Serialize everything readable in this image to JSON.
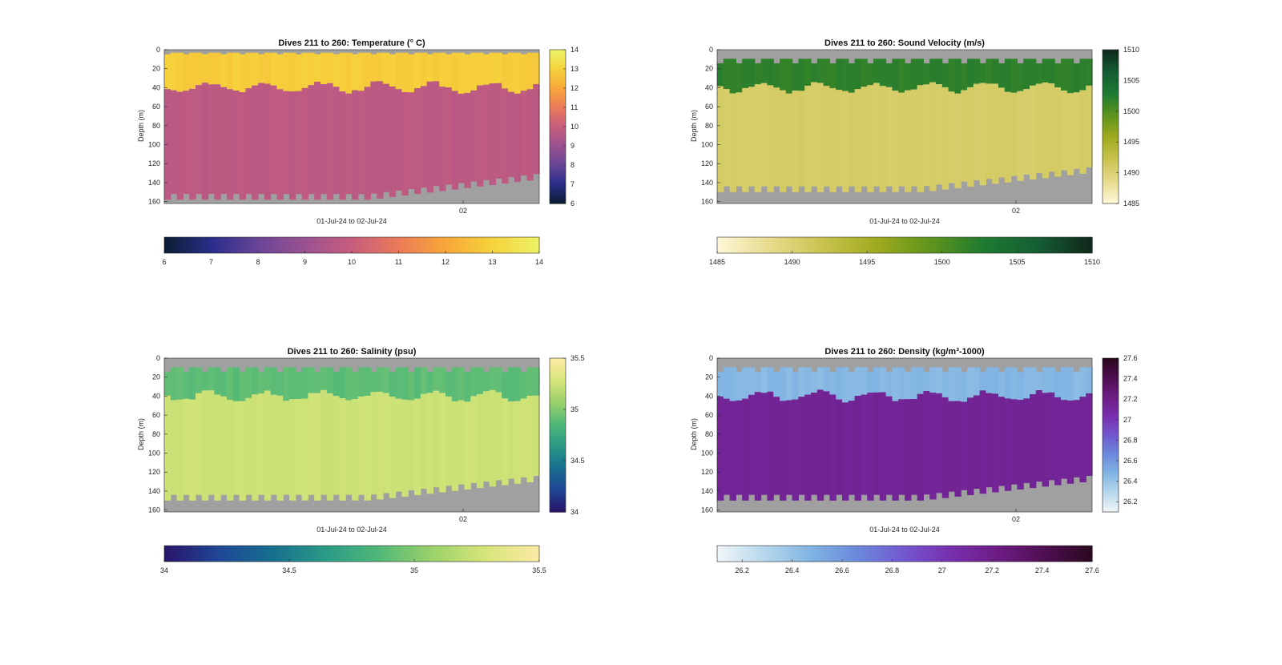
{
  "chart_data": [
    {
      "type": "heatmap",
      "title": "Dives 211 to 260: Temperature (° C)",
      "ylabel": "Depth (m)",
      "xlabel": "01-Jul-24 to 02-Jul-24",
      "ylim": [
        0,
        162
      ],
      "y_ticks": [
        0,
        20,
        40,
        60,
        80,
        100,
        120,
        140,
        160
      ],
      "x_ticks": [
        "02"
      ],
      "cbar_range": [
        6,
        14
      ],
      "cbar_ticks": [
        6,
        7,
        8,
        9,
        10,
        11,
        12,
        13,
        14
      ],
      "colormap": [
        "#0a1e36",
        "#2b2e8c",
        "#6a4596",
        "#9b5290",
        "#c75d7e",
        "#ea7a59",
        "#f7a639",
        "#f6d13b",
        "#edf165"
      ],
      "mixed_layer": {
        "value": 12.9,
        "depth_start": 35,
        "depth_end": 45
      },
      "deep_value": 9.75,
      "bottom_depth_start": 158,
      "bottom_depth_end": 137,
      "surface_gap_depth": 4
    },
    {
      "type": "heatmap",
      "title": "Dives 211 to 260: Sound Velocity (m/s)",
      "ylabel": "Depth (m)",
      "xlabel": "01-Jul-24 to 02-Jul-24",
      "ylim": [
        0,
        162
      ],
      "y_ticks": [
        0,
        20,
        40,
        60,
        80,
        100,
        120,
        140,
        160
      ],
      "x_ticks": [
        "02"
      ],
      "cbar_range": [
        1485,
        1510
      ],
      "cbar_ticks": [
        1485,
        1490,
        1495,
        1500,
        1505,
        1510
      ],
      "colormap": [
        "#fdf6d4",
        "#e6da8a",
        "#c8c24c",
        "#9eaa1e",
        "#5e941c",
        "#1e7a30",
        "#155e34",
        "#102a1c"
      ],
      "mixed_layer": {
        "value": 1502,
        "depth_start": 35,
        "depth_end": 45
      },
      "deep_value": 1490.6,
      "bottom_depth_start": 150,
      "bottom_depth_end": 130,
      "surface_gap_depth": 12
    },
    {
      "type": "heatmap",
      "title": "Dives 211 to 260: Salinity (psu)",
      "ylabel": "Depth (m)",
      "xlabel": "01-Jul-24 to 02-Jul-24",
      "ylim": [
        0,
        162
      ],
      "y_ticks": [
        0,
        20,
        40,
        60,
        80,
        100,
        120,
        140,
        160
      ],
      "x_ticks": [
        "02"
      ],
      "cbar_range": [
        34,
        35.5
      ],
      "cbar_ticks": [
        34,
        34.5,
        35,
        35.5
      ],
      "colormap": [
        "#29166b",
        "#1f4796",
        "#176f8f",
        "#2a9a86",
        "#4fb878",
        "#9ad16a",
        "#d6e579",
        "#fbeaa3"
      ],
      "mixed_layer": {
        "value": 34.9,
        "depth_start": 35,
        "depth_end": 45
      },
      "deep_value": 35.25,
      "bottom_depth_start": 150,
      "bottom_depth_end": 130,
      "surface_gap_depth": 12
    },
    {
      "type": "heatmap",
      "title": "Dives 211 to 260: Density (kg/m³-1000)",
      "ylabel": "Depth (m)",
      "xlabel": "01-Jul-24 to 02-Jul-24",
      "ylim": [
        0,
        162
      ],
      "y_ticks": [
        0,
        20,
        40,
        60,
        80,
        100,
        120,
        140,
        160
      ],
      "x_ticks": [
        "02"
      ],
      "cbar_range": [
        26.1,
        27.6
      ],
      "cbar_ticks": [
        26.2,
        26.4,
        26.6,
        26.8,
        27,
        27.2,
        27.4,
        27.6
      ],
      "colormap": [
        "#eef5f7",
        "#b5d6ec",
        "#7fb3e2",
        "#6b88dc",
        "#7357cf",
        "#782fae",
        "#6e1d84",
        "#4f0f52",
        "#2b0820"
      ],
      "mixed_layer": {
        "value": 26.45,
        "depth_start": 35,
        "depth_end": 45
      },
      "deep_value": 27.15,
      "bottom_depth_start": 150,
      "bottom_depth_end": 130,
      "surface_gap_depth": 12
    }
  ]
}
